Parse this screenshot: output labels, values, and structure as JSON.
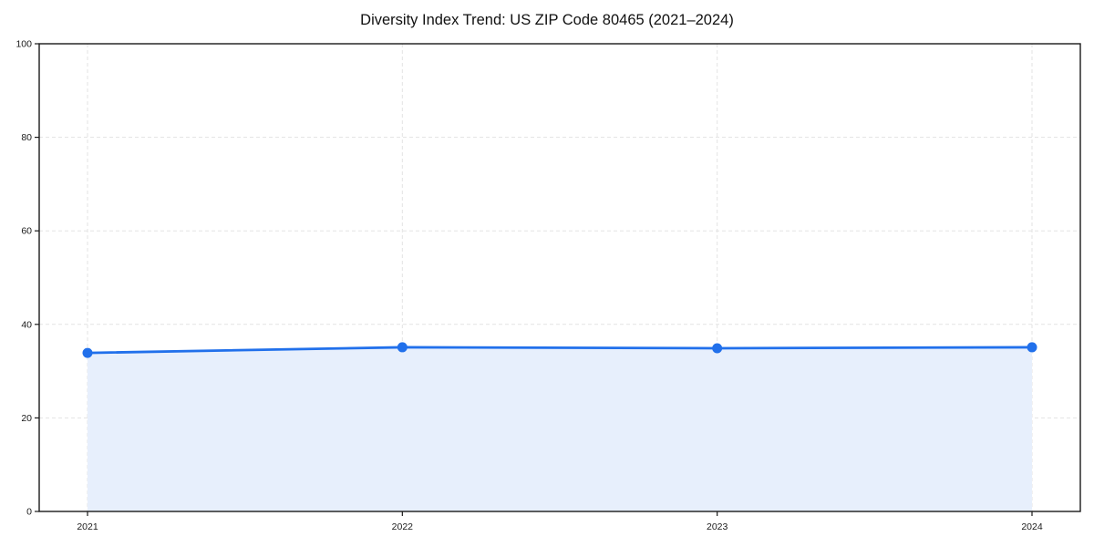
{
  "page": {
    "background": "#ffffff"
  },
  "chart_data": {
    "type": "line",
    "title": "Diversity Index Trend: US ZIP Code 80465 (2021–2024)",
    "categories": [
      "2021",
      "2022",
      "2023",
      "2024"
    ],
    "values": [
      33.9,
      35.1,
      34.9,
      35.1
    ],
    "xlabel": "",
    "ylabel": "",
    "ylim": [
      0,
      100
    ],
    "yticks": [
      0,
      20,
      40,
      60,
      80,
      100
    ],
    "grid": true,
    "grid_style": "dashed",
    "area_fill": true,
    "legend_position": "none",
    "colors": {
      "line": "#2170eb",
      "marker": "#2170eb",
      "area": "#e7effc",
      "gridline": "#e3e3e3",
      "frame": "#1a1a1a",
      "tick_label": "#1a1a1a",
      "title": "#111111",
      "background": "#ffffff"
    }
  }
}
